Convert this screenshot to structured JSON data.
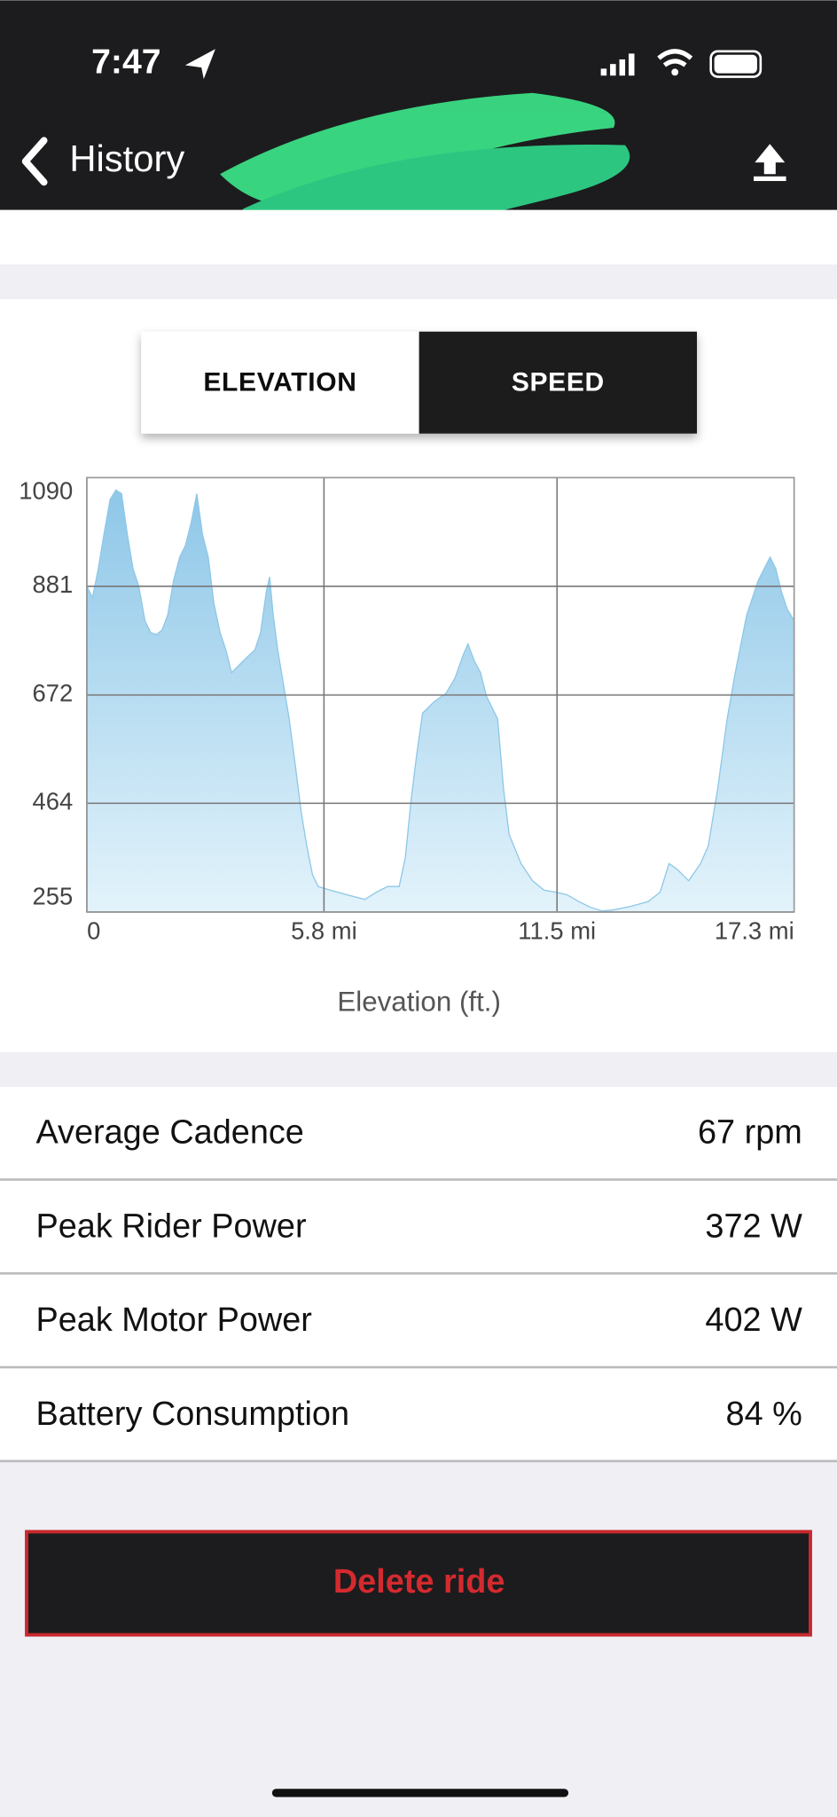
{
  "status_bar": {
    "time": "7:47"
  },
  "nav": {
    "back": "History"
  },
  "toggle": {
    "options": [
      "ELEVATION",
      "SPEED"
    ],
    "highlighted": 1
  },
  "chart_data": {
    "type": "area",
    "axis_title": "Elevation (ft.)",
    "color": "#8ec7e8",
    "x": [
      0,
      0.14,
      0.28,
      0.42,
      0.57,
      0.71,
      0.85,
      0.99,
      1.13,
      1.27,
      1.42,
      1.56,
      1.7,
      1.84,
      1.98,
      2.12,
      2.27,
      2.41,
      2.55,
      2.69,
      2.83,
      2.97,
      3.11,
      3.26,
      3.4,
      3.54,
      3.68,
      3.82,
      3.96,
      4.11,
      4.25,
      4.39,
      4.47,
      4.56,
      4.67,
      4.81,
      4.95,
      5.1,
      5.24,
      5.38,
      5.52,
      5.66,
      5.95,
      6.37,
      6.8,
      7.08,
      7.36,
      7.64,
      7.79,
      7.93,
      8.07,
      8.21,
      8.49,
      8.78,
      9.0,
      9.2,
      9.32,
      9.48,
      9.63,
      9.77,
      9.91,
      10.05,
      10.19,
      10.33,
      10.62,
      10.9,
      11.18,
      11.47,
      11.75,
      12.03,
      12.32,
      12.6,
      12.88,
      13.31,
      13.73,
      14.02,
      14.24,
      14.44,
      14.72,
      15.01,
      15.2,
      15.43,
      15.66,
      15.86,
      16.14,
      16.42,
      16.71,
      16.85,
      16.99,
      17.13,
      17.3
    ],
    "values": [
      881,
      859,
      915,
      981,
      1048,
      1066,
      1059,
      981,
      915,
      881,
      815,
      792,
      788,
      797,
      826,
      892,
      937,
      959,
      1003,
      1059,
      981,
      937,
      848,
      792,
      759,
      715,
      726,
      737,
      748,
      759,
      792,
      870,
      899,
      826,
      759,
      692,
      626,
      537,
      448,
      382,
      326,
      304,
      297,
      288,
      279,
      293,
      304,
      304,
      359,
      470,
      559,
      637,
      659,
      675,
      704,
      748,
      770,
      737,
      715,
      670,
      648,
      626,
      493,
      404,
      348,
      315,
      297,
      293,
      288,
      275,
      264,
      257,
      259,
      266,
      275,
      293,
      348,
      337,
      315,
      348,
      382,
      493,
      626,
      715,
      826,
      892,
      937,
      915,
      870,
      837,
      815
    ],
    "xlim": [
      0,
      17.3
    ],
    "xticks": [
      0,
      {
        "value": 5.8,
        "label": "5.8 mi"
      },
      {
        "value": 11.5,
        "label": "11.5 mi"
      },
      {
        "value": 17.3,
        "label": "17.3 mi"
      }
    ],
    "ylim": [
      255,
      1090
    ],
    "yticks": [
      255,
      464,
      672,
      881,
      1090
    ],
    "grid": true
  },
  "stats": {
    "rows": [
      [
        "Average Cadence",
        "67 rpm"
      ],
      [
        "Peak Rider Power",
        "372 W"
      ],
      [
        "Peak Motor Power",
        "402 W"
      ],
      [
        "Battery Consumption",
        "84 %"
      ]
    ]
  },
  "actions": {
    "delete": "Delete ride"
  }
}
